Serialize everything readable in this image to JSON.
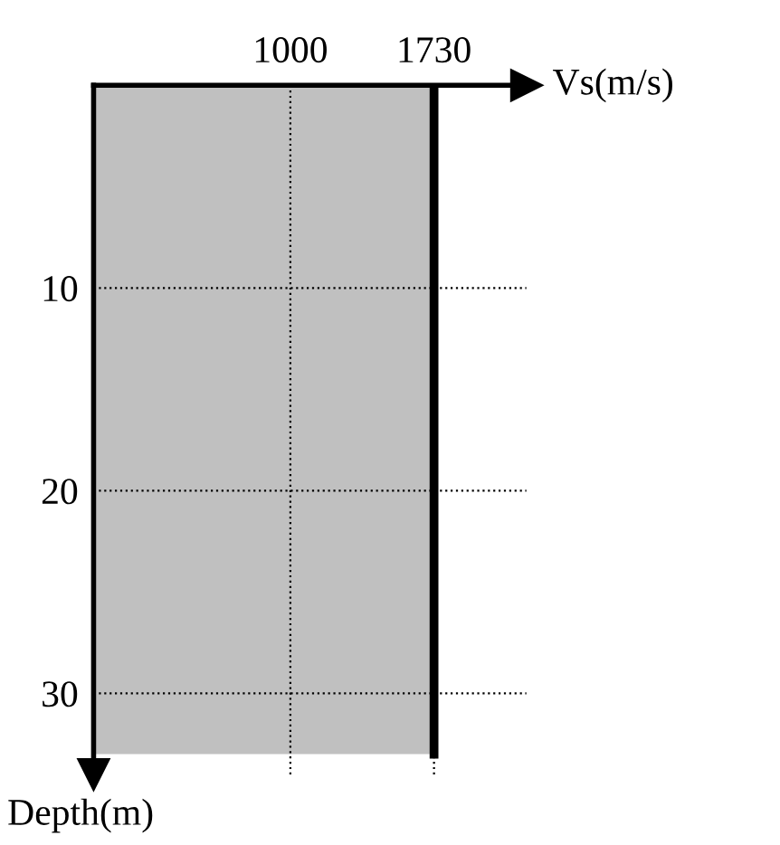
{
  "chart_data": {
    "type": "area",
    "orientation": "horizontal",
    "xlabel": "Vs(m/s)",
    "ylabel": "Depth(m)",
    "x": [
      0,
      33
    ],
    "values": [
      1730,
      1730
    ],
    "color": "#c0c0c0",
    "xlim": [
      0,
      2200
    ],
    "xticks": [
      1000,
      1730
    ],
    "ylim": [
      34,
      0
    ],
    "yticks": [
      10,
      20,
      30
    ],
    "grid": true
  }
}
